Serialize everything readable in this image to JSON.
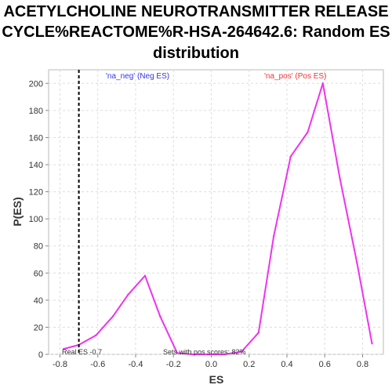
{
  "chart_data": {
    "type": "line",
    "title_lines": [
      "ACETYLCHOLINE NEUROTRANSMITTER RELEASE",
      "CYCLE%REACTOME%R-HSA-264642.6: Random ES",
      "distribution"
    ],
    "xlabel": "ES",
    "ylabel": "P(ES)",
    "xlim": [
      -0.86,
      0.91
    ],
    "ylim": [
      0,
      210
    ],
    "xticks": [
      -0.8,
      -0.6,
      -0.4,
      -0.2,
      0.0,
      0.2,
      0.4,
      0.6,
      0.8
    ],
    "xtick_labels": [
      "-0.8",
      "-0.6",
      "-0.4",
      "-0.2",
      "0.0",
      "0.2",
      "0.4",
      "0.6",
      "0.8"
    ],
    "yticks": [
      0,
      20,
      40,
      60,
      80,
      100,
      120,
      140,
      160,
      180,
      200
    ],
    "ytick_labels": [
      "0",
      "20",
      "40",
      "60",
      "80",
      "100",
      "120",
      "140",
      "160",
      "180",
      "200"
    ],
    "grid": true,
    "series": [
      {
        "name": "",
        "color": "#ee33ee",
        "x": [
          -0.78,
          -0.7,
          -0.61,
          -0.52,
          -0.44,
          -0.35,
          -0.27,
          -0.18,
          -0.1,
          -0.01,
          0.07,
          0.16,
          0.25,
          0.33,
          0.42,
          0.51,
          0.59,
          0.68,
          0.77,
          0.85
        ],
        "y": [
          4,
          7,
          14,
          28,
          44,
          58,
          28,
          1,
          0,
          0,
          0,
          2,
          16,
          87,
          146,
          164,
          200,
          130,
          68,
          8
        ]
      }
    ],
    "real_es_line": {
      "x": -0.7,
      "color": "#000000",
      "style": "dashed"
    },
    "legend": {
      "neg_label": "'na_neg' (Neg ES)",
      "pos_label": "'na_pos' (Pos ES)",
      "neg_color": "#3333ee",
      "pos_color": "#ee3333"
    },
    "annotations": {
      "real_es": "Real ES -0.7",
      "pos_scores": "Sets with pos scores: 82%"
    }
  }
}
